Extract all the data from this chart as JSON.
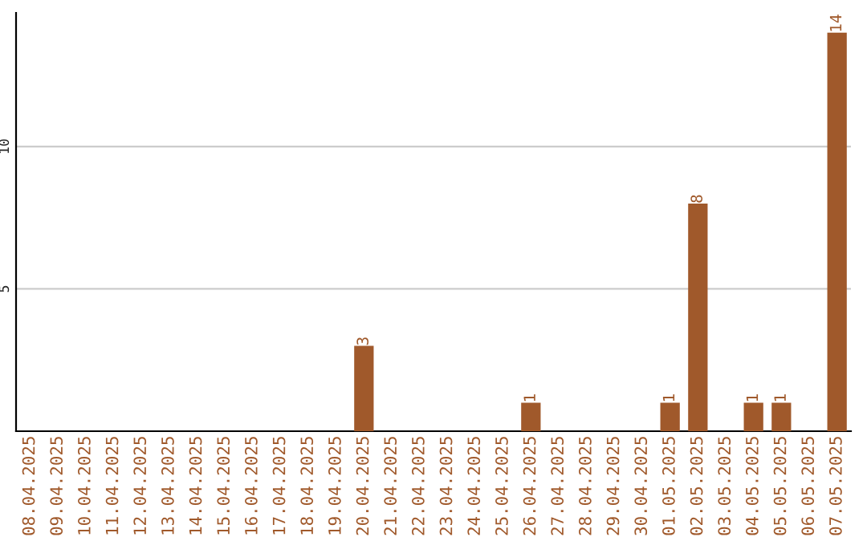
{
  "chart_data": {
    "type": "bar",
    "categories": [
      "08.04.2025",
      "09.04.2025",
      "10.04.2025",
      "11.04.2025",
      "12.04.2025",
      "13.04.2025",
      "14.04.2025",
      "15.04.2025",
      "16.04.2025",
      "17.04.2025",
      "18.04.2025",
      "19.04.2025",
      "20.04.2025",
      "21.04.2025",
      "22.04.2025",
      "23.04.2025",
      "24.04.2025",
      "25.04.2025",
      "26.04.2025",
      "27.04.2025",
      "28.04.2025",
      "29.04.2025",
      "30.04.2025",
      "01.05.2025",
      "02.05.2025",
      "03.05.2025",
      "04.05.2025",
      "05.05.2025",
      "06.05.2025",
      "07.05.2025"
    ],
    "values": [
      0,
      0,
      0,
      0,
      0,
      0,
      0,
      0,
      0,
      0,
      0,
      0,
      3,
      0,
      0,
      0,
      0,
      0,
      1,
      0,
      0,
      0,
      0,
      1,
      8,
      0,
      1,
      1,
      0,
      14
    ],
    "value_labels": [
      null,
      null,
      null,
      null,
      null,
      null,
      null,
      null,
      null,
      null,
      null,
      null,
      "3",
      null,
      null,
      null,
      null,
      null,
      "1",
      null,
      null,
      null,
      null,
      "1",
      "8",
      null,
      "1",
      "1",
      null,
      "14"
    ],
    "color": "#a0592b",
    "ylim": [
      0,
      14.7
    ],
    "yticks": [
      5,
      10
    ],
    "grid": "y"
  }
}
